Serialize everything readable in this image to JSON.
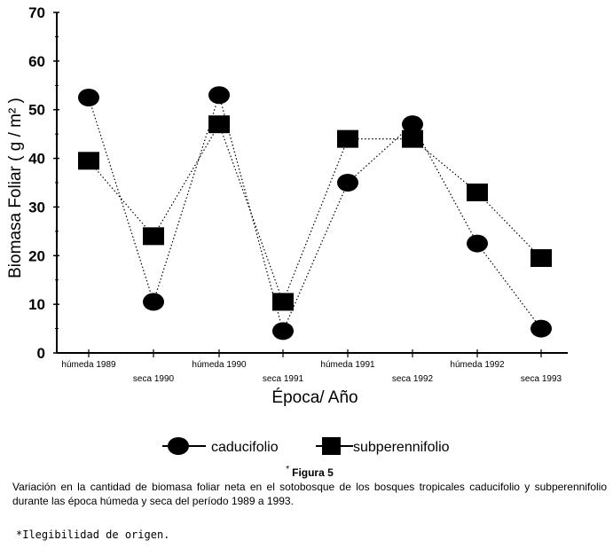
{
  "chart_data": {
    "type": "line",
    "categories": [
      "húmeda 1989",
      "seca 1990",
      "húmeda 1990",
      "seca 1991",
      "húmeda 1991",
      "seca 1992",
      "húmeda 1992",
      "seca 1993"
    ],
    "series": [
      {
        "name": "caducifolio",
        "marker": "circle",
        "values": [
          52.5,
          10.5,
          53,
          4.5,
          35,
          47,
          22.5,
          5
        ]
      },
      {
        "name": "subperennifolio",
        "marker": "square",
        "values": [
          39.5,
          24,
          47,
          10.5,
          44,
          44,
          33,
          19.5
        ]
      }
    ],
    "title": "",
    "xlabel": "Época/ Año",
    "ylabel": "Biomasa Foliar ( g / m² )",
    "ylim": [
      0,
      70
    ],
    "yticks": [
      "0",
      "10",
      "20",
      "30",
      "40",
      "50",
      "60",
      "70"
    ],
    "line_style": "dotted",
    "color": "#000000"
  },
  "figure": {
    "note_mark": "*",
    "title": "Figura 5",
    "caption": "Variación en la cantidad de biomasa foliar neta en el sotobosque de los bosques tropicales caducifolio y subperennifolio durante las época húmeda y seca del período 1989 a 1993.",
    "footnote": "*Ilegibilidad de origen."
  }
}
